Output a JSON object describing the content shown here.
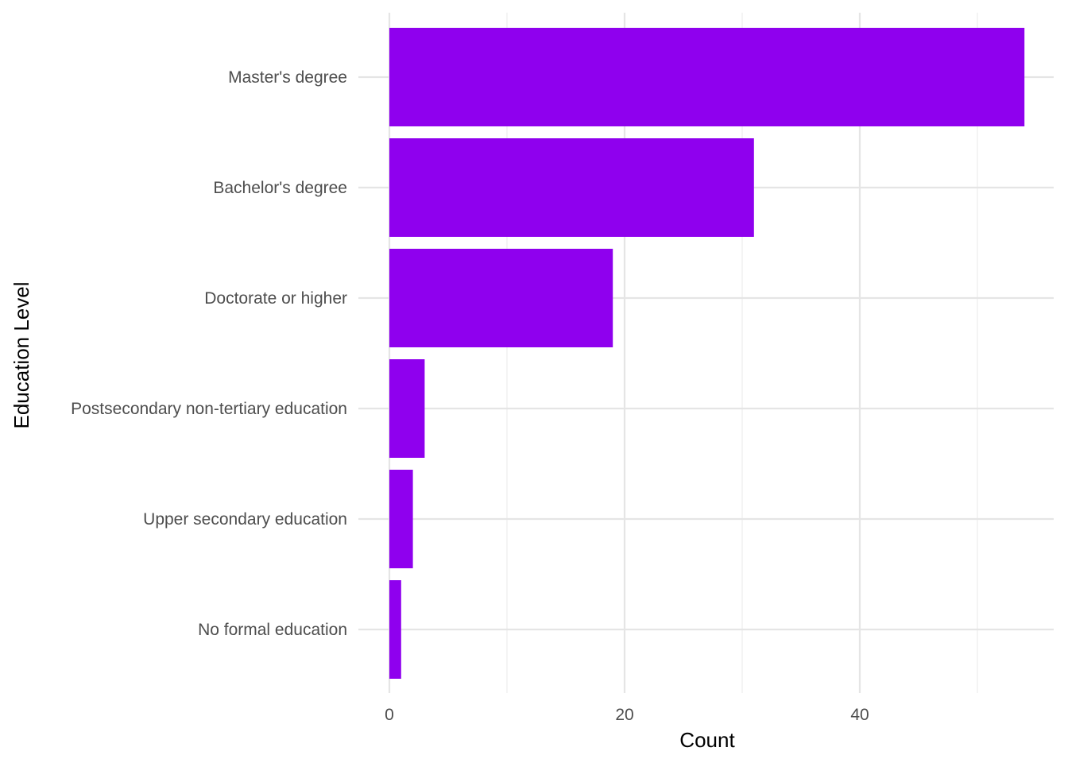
{
  "chart_data": {
    "type": "bar",
    "orientation": "horizontal",
    "categories": [
      "Master's degree",
      "Bachelor's degree",
      "Doctorate or higher",
      "Postsecondary non-tertiary education",
      "Upper secondary education",
      "No formal education"
    ],
    "values": [
      54,
      31,
      19,
      3,
      2,
      1
    ],
    "xlabel": "Count",
    "ylabel": "Education Level",
    "xlim": [
      0,
      54
    ],
    "xticks": [
      0,
      20,
      40
    ],
    "xtick_labels": [
      "0",
      "20",
      "40"
    ],
    "grid": true,
    "bar_color": "#8F00EE"
  }
}
